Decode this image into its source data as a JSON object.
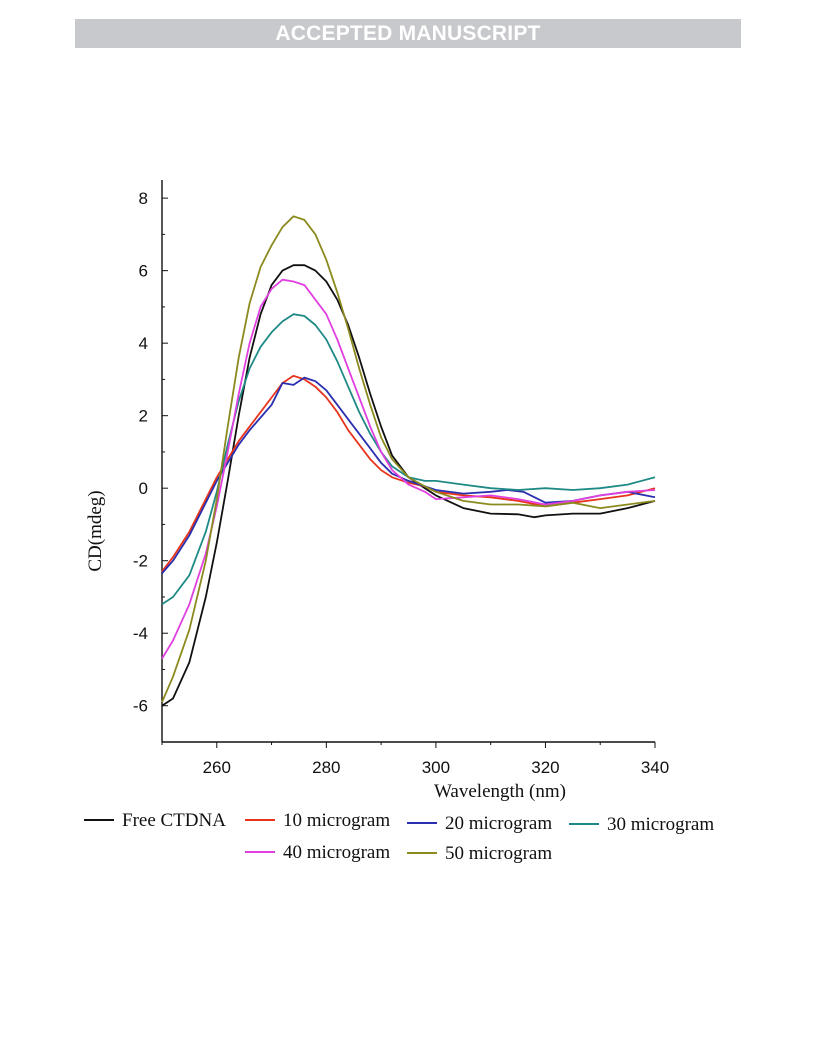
{
  "header": {
    "banner": "ACCEPTED MANUSCRIPT"
  },
  "chart_data": {
    "type": "line",
    "title": "",
    "xlabel": "Wavelength (nm)",
    "ylabel": "CD(mdeg)",
    "xlim": [
      250,
      340
    ],
    "ylim": [
      -7,
      8.5
    ],
    "xticks": [
      260,
      280,
      300,
      320,
      340
    ],
    "yticks": [
      -6,
      -4,
      -2,
      0,
      2,
      4,
      6,
      8
    ],
    "grid": false,
    "legend_position": "bottom",
    "series": [
      {
        "name": "Free CTDNA",
        "color": "#111111",
        "x": [
          250,
          252,
          255,
          258,
          260,
          262,
          264,
          266,
          268,
          270,
          272,
          274,
          276,
          278,
          280,
          282,
          284,
          286,
          288,
          290,
          292,
          295,
          298,
          300,
          305,
          310,
          315,
          318,
          320,
          325,
          330,
          335,
          340
        ],
        "y": [
          -6.0,
          -5.8,
          -4.8,
          -3.0,
          -1.5,
          0.2,
          2.0,
          3.6,
          4.8,
          5.6,
          6.0,
          6.15,
          6.15,
          6.0,
          5.7,
          5.2,
          4.5,
          3.6,
          2.6,
          1.7,
          0.9,
          0.3,
          0.0,
          -0.2,
          -0.55,
          -0.7,
          -0.72,
          -0.8,
          -0.75,
          -0.7,
          -0.7,
          -0.55,
          -0.35
        ]
      },
      {
        "name": "10 microgram",
        "color": "#e8341c",
        "x": [
          250,
          252,
          255,
          258,
          260,
          262,
          264,
          266,
          268,
          270,
          272,
          274,
          276,
          278,
          280,
          282,
          284,
          286,
          288,
          290,
          292,
          295,
          298,
          300,
          305,
          310,
          315,
          320,
          325,
          330,
          335,
          340
        ],
        "y": [
          -2.3,
          -1.9,
          -1.2,
          -0.3,
          0.3,
          0.8,
          1.3,
          1.7,
          2.1,
          2.5,
          2.9,
          3.1,
          3.0,
          2.8,
          2.5,
          2.1,
          1.6,
          1.2,
          0.8,
          0.5,
          0.3,
          0.15,
          0.05,
          -0.1,
          -0.2,
          -0.25,
          -0.35,
          -0.5,
          -0.4,
          -0.3,
          -0.2,
          0.0
        ]
      },
      {
        "name": "20 microgram",
        "color": "#2a2fb0",
        "x": [
          250,
          252,
          255,
          258,
          260,
          262,
          264,
          266,
          268,
          270,
          272,
          274,
          276,
          278,
          280,
          282,
          284,
          286,
          288,
          290,
          292,
          295,
          298,
          300,
          305,
          310,
          313,
          316,
          320,
          325,
          330,
          335,
          340
        ],
        "y": [
          -2.35,
          -2.0,
          -1.3,
          -0.4,
          0.2,
          0.7,
          1.2,
          1.6,
          1.95,
          2.3,
          2.9,
          2.85,
          3.05,
          2.95,
          2.7,
          2.3,
          1.9,
          1.5,
          1.1,
          0.7,
          0.4,
          0.2,
          0.05,
          -0.05,
          -0.15,
          -0.1,
          -0.05,
          -0.1,
          -0.4,
          -0.35,
          -0.2,
          -0.1,
          -0.25
        ]
      },
      {
        "name": "30 microgram",
        "color": "#1f8a85",
        "x": [
          250,
          252,
          255,
          258,
          260,
          262,
          264,
          266,
          268,
          270,
          272,
          274,
          276,
          278,
          280,
          282,
          284,
          286,
          288,
          290,
          292,
          295,
          298,
          300,
          305,
          310,
          315,
          320,
          325,
          330,
          335,
          340
        ],
        "y": [
          -3.2,
          -3.0,
          -2.4,
          -1.2,
          -0.1,
          1.2,
          2.4,
          3.3,
          3.9,
          4.3,
          4.6,
          4.8,
          4.75,
          4.5,
          4.1,
          3.5,
          2.8,
          2.1,
          1.5,
          1.0,
          0.6,
          0.3,
          0.2,
          0.2,
          0.1,
          0.0,
          -0.05,
          0.0,
          -0.05,
          0.0,
          0.1,
          0.3
        ]
      },
      {
        "name": "40 microgram",
        "color": "#e040e0",
        "x": [
          250,
          252,
          255,
          258,
          260,
          262,
          264,
          266,
          268,
          270,
          272,
          274,
          276,
          278,
          280,
          282,
          284,
          286,
          288,
          290,
          292,
          295,
          298,
          300,
          305,
          310,
          315,
          320,
          325,
          330,
          335,
          340
        ],
        "y": [
          -4.7,
          -4.2,
          -3.2,
          -1.8,
          -0.5,
          1.0,
          2.6,
          4.0,
          5.0,
          5.5,
          5.75,
          5.7,
          5.6,
          5.2,
          4.8,
          4.1,
          3.3,
          2.5,
          1.7,
          1.0,
          0.5,
          0.1,
          -0.1,
          -0.3,
          -0.25,
          -0.2,
          -0.3,
          -0.45,
          -0.35,
          -0.2,
          -0.1,
          -0.05
        ]
      },
      {
        "name": "50 microgram",
        "color": "#8b8a1e",
        "x": [
          250,
          252,
          255,
          258,
          260,
          262,
          264,
          266,
          268,
          270,
          272,
          274,
          276,
          278,
          280,
          282,
          284,
          286,
          288,
          290,
          292,
          295,
          298,
          300,
          305,
          310,
          315,
          320,
          325,
          330,
          335,
          340
        ],
        "y": [
          -5.9,
          -5.2,
          -3.9,
          -2.0,
          -0.3,
          1.7,
          3.6,
          5.1,
          6.1,
          6.7,
          7.2,
          7.5,
          7.4,
          7.0,
          6.3,
          5.4,
          4.4,
          3.3,
          2.3,
          1.4,
          0.8,
          0.3,
          0.05,
          -0.1,
          -0.35,
          -0.45,
          -0.45,
          -0.5,
          -0.4,
          -0.55,
          -0.45,
          -0.35
        ]
      }
    ]
  }
}
